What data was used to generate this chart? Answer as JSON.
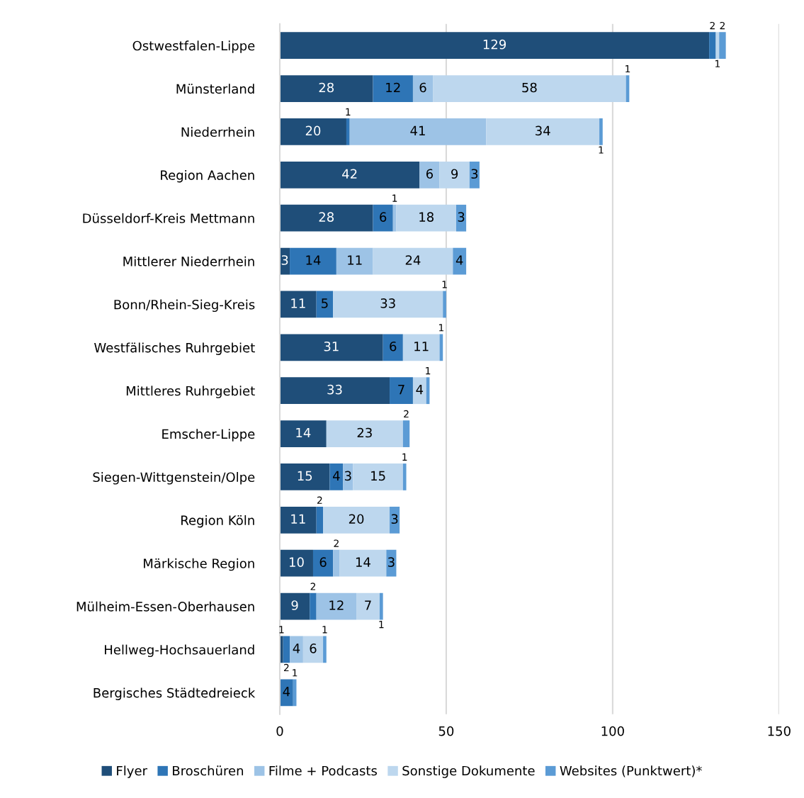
{
  "chart_data": {
    "type": "bar",
    "orientation": "horizontal",
    "stacked": true,
    "data_labels": true,
    "grid": "x",
    "legend": "bottom",
    "categories": [
      "Ostwestfalen-Lippe",
      "Münsterland",
      "Niederrhein",
      "Region Aachen",
      "Düsseldorf-Kreis Mettmann",
      "Mittlerer Niederrhein",
      "Bonn/Rhein-Sieg-Kreis",
      "Westfälisches Ruhrgebiet",
      "Mittleres Ruhrgebiet",
      "Emscher-Lippe",
      "Siegen-Wittgenstein/Olpe",
      "Region Köln",
      "Märkische Region",
      "Mülheim-Essen-Oberhausen",
      "Hellweg-Hochsauerland",
      "Bergisches Städtedreieck"
    ],
    "series": [
      {
        "name": "Flyer",
        "color": "#1f4e79",
        "values": [
          129,
          28,
          20,
          42,
          28,
          3,
          11,
          31,
          33,
          14,
          15,
          11,
          10,
          9,
          1,
          null
        ]
      },
      {
        "name": "Broschüren",
        "color": "#2e75b6",
        "values": [
          2,
          12,
          1,
          null,
          6,
          14,
          5,
          6,
          7,
          null,
          4,
          2,
          6,
          2,
          2,
          4
        ]
      },
      {
        "name": "Filme + Podcasts",
        "color": "#9dc3e6",
        "values": [
          null,
          6,
          41,
          6,
          1,
          11,
          null,
          null,
          null,
          null,
          3,
          null,
          2,
          12,
          4,
          null
        ]
      },
      {
        "name": "Sonstige Dokumente",
        "color": "#bdd7ee",
        "values": [
          1,
          58,
          34,
          9,
          18,
          24,
          33,
          11,
          4,
          23,
          15,
          20,
          14,
          7,
          6,
          null
        ]
      },
      {
        "name": "Websites (Punktwert)*",
        "color": "#5b9bd5",
        "values": [
          2,
          1,
          1,
          3,
          3,
          4,
          1,
          1,
          1,
          2,
          1,
          3,
          3,
          1,
          1,
          1
        ]
      }
    ],
    "xlim": [
      0,
      150
    ],
    "xticks": [
      0,
      50,
      100,
      150
    ]
  }
}
